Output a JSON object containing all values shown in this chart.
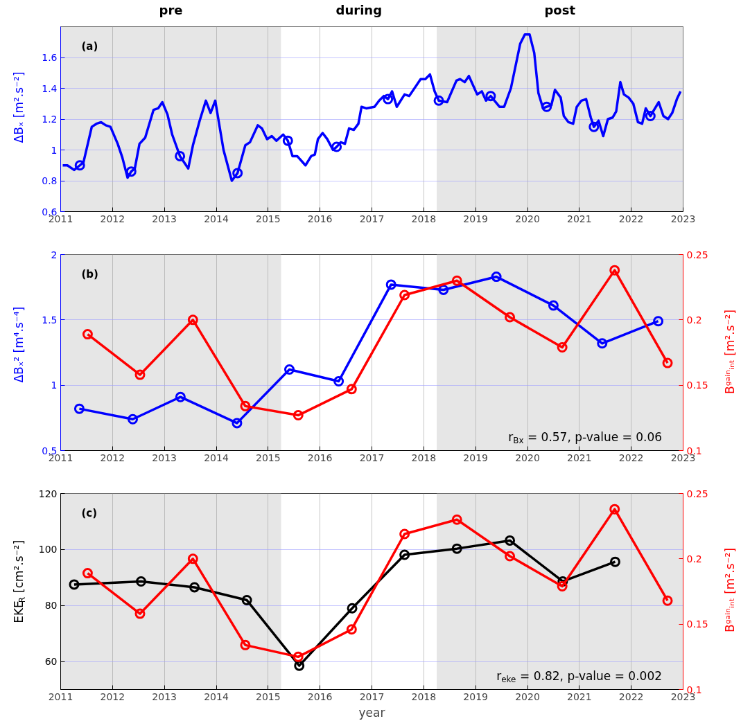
{
  "chart_data": [
    {
      "type": "line",
      "ylabel": "ΔBₓ [m².s⁻²]",
      "xlim": [
        2011,
        2023
      ],
      "xticks": [
        2011,
        2012,
        2013,
        2014,
        2015,
        2016,
        2017,
        2018,
        2019,
        2020,
        2021,
        2022,
        2023
      ],
      "ylim": [
        0.6,
        1.8
      ],
      "yticks": [
        0.6,
        0.8,
        1,
        1.2,
        1.4,
        1.6
      ],
      "grid": true,
      "line_style": "solid",
      "bands": [
        {
          "axis": "x",
          "from": 2011,
          "to": 2015.25,
          "label": "pre",
          "color": "#e6e6e6"
        },
        {
          "axis": "x",
          "from": 2015.25,
          "to": 2018.25,
          "label": "during",
          "color": "#ffffff"
        },
        {
          "axis": "x",
          "from": 2018.25,
          "to": 2023,
          "label": "post",
          "color": "#e6e6e6"
        }
      ],
      "annotations": [
        "(a)"
      ],
      "series": [
        {
          "type": "line",
          "marker": "none",
          "color": "#0000ff",
          "x": [
            2011.04,
            2011.13,
            2011.26,
            2011.37,
            2011.44,
            2011.6,
            2011.69,
            2011.78,
            2011.87,
            2011.96,
            2012.1,
            2012.19,
            2012.29,
            2012.36,
            2012.43,
            2012.52,
            2012.63,
            2012.79,
            2012.88,
            2012.96,
            2013.06,
            2013.15,
            2013.3,
            2013.46,
            2013.55,
            2013.68,
            2013.8,
            2013.89,
            2013.98,
            2014.14,
            2014.3,
            2014.41,
            2014.56,
            2014.65,
            2014.8,
            2014.88,
            2014.98,
            2015.07,
            2015.16,
            2015.29,
            2015.38,
            2015.47,
            2015.56,
            2015.72,
            2015.83,
            2015.9,
            2015.96,
            2016.05,
            2016.14,
            2016.25,
            2016.32,
            2016.4,
            2016.48,
            2016.56,
            2016.65,
            2016.74,
            2016.8,
            2016.89,
            2017.05,
            2017.14,
            2017.23,
            2017.31,
            2017.39,
            2017.48,
            2017.63,
            2017.72,
            2017.94,
            2018.03,
            2018.12,
            2018.21,
            2018.29,
            2018.45,
            2018.63,
            2018.7,
            2018.79,
            2018.87,
            2019.03,
            2019.12,
            2019.2,
            2019.29,
            2019.46,
            2019.55,
            2019.68,
            2019.86,
            2019.95,
            2020.04,
            2020.13,
            2020.21,
            2020.3,
            2020.37,
            2020.46,
            2020.53,
            2020.64,
            2020.7,
            2020.79,
            2020.88,
            2020.95,
            2021.04,
            2021.13,
            2021.22,
            2021.28,
            2021.37,
            2021.46,
            2021.55,
            2021.64,
            2021.71,
            2021.79,
            2021.86,
            2021.95,
            2022.04,
            2022.13,
            2022.21,
            2022.28,
            2022.37,
            2022.44,
            2022.53,
            2022.62,
            2022.71,
            2022.79,
            2022.88,
            2022.95
          ],
          "values": [
            0.9,
            0.9,
            0.87,
            0.9,
            0.92,
            1.15,
            1.17,
            1.18,
            1.16,
            1.15,
            1.04,
            0.95,
            0.82,
            0.86,
            0.88,
            1.04,
            1.08,
            1.26,
            1.27,
            1.31,
            1.23,
            1.1,
            0.96,
            0.88,
            1.03,
            1.19,
            1.32,
            1.24,
            1.32,
            1.0,
            0.8,
            0.85,
            1.03,
            1.05,
            1.16,
            1.14,
            1.07,
            1.09,
            1.06,
            1.1,
            1.06,
            0.96,
            0.96,
            0.9,
            0.96,
            0.97,
            1.07,
            1.11,
            1.07,
            1.0,
            1.02,
            1.05,
            1.04,
            1.14,
            1.13,
            1.17,
            1.28,
            1.27,
            1.28,
            1.32,
            1.35,
            1.33,
            1.38,
            1.28,
            1.36,
            1.35,
            1.46,
            1.46,
            1.49,
            1.38,
            1.32,
            1.31,
            1.45,
            1.46,
            1.44,
            1.48,
            1.36,
            1.38,
            1.32,
            1.35,
            1.28,
            1.28,
            1.4,
            1.69,
            1.75,
            1.75,
            1.63,
            1.37,
            1.27,
            1.28,
            1.29,
            1.39,
            1.34,
            1.22,
            1.18,
            1.17,
            1.28,
            1.32,
            1.33,
            1.21,
            1.15,
            1.19,
            1.09,
            1.2,
            1.21,
            1.25,
            1.44,
            1.36,
            1.34,
            1.3,
            1.18,
            1.17,
            1.27,
            1.22,
            1.26,
            1.31,
            1.22,
            1.2,
            1.24,
            1.33,
            1.38
          ]
        },
        {
          "type": "scatter",
          "marker": "circle",
          "color": "#0000ff",
          "x": [
            2011.37,
            2012.36,
            2013.3,
            2014.41,
            2015.38,
            2016.32,
            2017.31,
            2018.29,
            2019.29,
            2020.37,
            2021.28,
            2022.37
          ],
          "values": [
            0.9,
            0.86,
            0.96,
            0.85,
            1.06,
            1.02,
            1.33,
            1.32,
            1.35,
            1.28,
            1.15,
            1.22
          ]
        }
      ]
    },
    {
      "type": "line",
      "ylabel": "ΔBₓ² [m⁴.s⁻⁴]",
      "y2label": "Bᵍᵃⁱⁿᵢₙₜ [m².s⁻²]",
      "xlim": [
        2011,
        2023
      ],
      "xticks": [
        2011,
        2012,
        2013,
        2014,
        2015,
        2016,
        2017,
        2018,
        2019,
        2020,
        2021,
        2022,
        2023
      ],
      "ylim": [
        0.5,
        2
      ],
      "yticks": [
        0.5,
        1,
        1.5,
        2
      ],
      "y2lim": [
        0.1,
        0.25
      ],
      "y2ticks": [
        0.1,
        0.15,
        0.2,
        0.25
      ],
      "grid": true,
      "line_style": "solid",
      "bands": [
        {
          "axis": "x",
          "from": 2011,
          "to": 2015.25,
          "color": "#e6e6e6"
        },
        {
          "axis": "x",
          "from": 2018.25,
          "to": 2023,
          "color": "#e6e6e6"
        }
      ],
      "annotations": [
        "(b)",
        "r$_{Bx}$ = 0.57, p-value = 0.06"
      ],
      "series": [
        {
          "type": "line",
          "marker": "circle",
          "color": "#0000ff",
          "axis": "y",
          "x": [
            2011.36,
            2012.39,
            2013.31,
            2014.4,
            2015.41,
            2016.36,
            2017.37,
            2018.38,
            2019.4,
            2020.5,
            2021.44,
            2022.52
          ],
          "values": [
            0.82,
            0.74,
            0.91,
            0.71,
            1.12,
            1.03,
            1.77,
            1.73,
            1.83,
            1.61,
            1.32,
            1.49
          ]
        },
        {
          "type": "line",
          "marker": "circle",
          "color": "#ff0000",
          "axis": "y2",
          "x": [
            2011.52,
            2012.53,
            2013.55,
            2014.56,
            2015.58,
            2016.61,
            2017.63,
            2018.64,
            2019.66,
            2020.67,
            2021.68,
            2022.7
          ],
          "values": [
            0.189,
            0.158,
            0.2,
            0.134,
            0.127,
            0.147,
            0.219,
            0.23,
            0.202,
            0.179,
            0.238,
            0.167
          ]
        }
      ]
    },
    {
      "type": "line",
      "ylabel": "EKE$_{R}$ [cm².s⁻²]",
      "y2label": "Bᵍᵃⁱⁿᵢₙₜ [m².s⁻²]",
      "xlabel": "year",
      "xlim": [
        2011,
        2023
      ],
      "xticks": [
        2011,
        2012,
        2013,
        2014,
        2015,
        2016,
        2017,
        2018,
        2019,
        2020,
        2021,
        2022,
        2023
      ],
      "ylim": [
        50,
        120
      ],
      "yticks": [
        60,
        80,
        100,
        120
      ],
      "y2lim": [
        0.1,
        0.25
      ],
      "y2ticks": [
        0.1,
        0.15,
        0.2,
        0.25
      ],
      "grid": true,
      "line_style": "solid",
      "bands": [
        {
          "axis": "x",
          "from": 2011,
          "to": 2015.25,
          "color": "#e6e6e6"
        },
        {
          "axis": "x",
          "from": 2018.25,
          "to": 2023,
          "color": "#e6e6e6"
        }
      ],
      "annotations": [
        "(c)",
        "r$_{eke}$ = 0.82, p-value = 0.002"
      ],
      "series": [
        {
          "type": "line",
          "marker": "circle",
          "color": "#000000",
          "axis": "y",
          "x": [
            2011.26,
            2012.55,
            2013.58,
            2014.59,
            2015.6,
            2016.62,
            2017.63,
            2018.64,
            2019.66,
            2020.68,
            2021.69
          ],
          "values": [
            87.5,
            88.6,
            86.5,
            81.9,
            58.5,
            79.0,
            98.1,
            100.3,
            103.2,
            88.6,
            95.6
          ]
        },
        {
          "type": "line",
          "marker": "circle",
          "color": "#ff0000",
          "axis": "y2",
          "x": [
            2011.52,
            2012.53,
            2013.55,
            2014.56,
            2015.58,
            2016.61,
            2017.63,
            2018.64,
            2019.66,
            2020.67,
            2021.68,
            2022.7
          ],
          "values": [
            0.189,
            0.158,
            0.2,
            0.134,
            0.125,
            0.146,
            0.219,
            0.23,
            0.202,
            0.179,
            0.238,
            0.168
          ]
        }
      ]
    }
  ]
}
